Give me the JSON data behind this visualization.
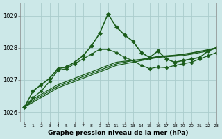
{
  "title": "Graphe pression niveau de la mer (hPa)",
  "bg_color": "#cce8e8",
  "grid_color": "#aacccc",
  "line_color": "#1a5c1a",
  "xlim": [
    -0.5,
    23
  ],
  "ylim": [
    1025.7,
    1029.4
  ],
  "yticks": [
    1026,
    1027,
    1028,
    1029
  ],
  "xticks": [
    0,
    1,
    2,
    3,
    4,
    5,
    6,
    7,
    8,
    9,
    10,
    11,
    12,
    13,
    14,
    15,
    16,
    17,
    18,
    19,
    20,
    21,
    22,
    23
  ],
  "series": [
    {
      "x": [
        0,
        1,
        2,
        3,
        4,
        5,
        6,
        7,
        8,
        9,
        10,
        11,
        12,
        13,
        14,
        15,
        16,
        17,
        18,
        19,
        20,
        21,
        22,
        23
      ],
      "y": [
        1026.15,
        1026.65,
        1026.85,
        1027.05,
        1027.35,
        1027.4,
        1027.55,
        1027.75,
        1028.05,
        1028.45,
        1029.05,
        1028.65,
        1028.4,
        1028.2,
        1027.85,
        1027.7,
        1027.9,
        1027.65,
        1027.55,
        1027.6,
        1027.65,
        1027.7,
        1027.9,
        1028.0
      ],
      "marker": "D",
      "markersize": 3.0,
      "linewidth": 1.2,
      "has_marker": true
    },
    {
      "x": [
        0,
        1,
        2,
        3,
        4,
        5,
        6,
        7,
        8,
        9,
        10,
        11,
        12,
        13,
        14,
        15,
        16,
        17,
        18,
        19,
        20,
        21,
        22,
        23
      ],
      "y": [
        1026.15,
        1026.3,
        1026.45,
        1026.6,
        1026.75,
        1026.85,
        1026.95,
        1027.05,
        1027.15,
        1027.25,
        1027.35,
        1027.45,
        1027.5,
        1027.55,
        1027.6,
        1027.65,
        1027.7,
        1027.72,
        1027.74,
        1027.76,
        1027.8,
        1027.85,
        1027.9,
        1028.0
      ],
      "marker": null,
      "markersize": 0,
      "linewidth": 0.9,
      "has_marker": false
    },
    {
      "x": [
        0,
        1,
        2,
        3,
        4,
        5,
        6,
        7,
        8,
        9,
        10,
        11,
        12,
        13,
        14,
        15,
        16,
        17,
        18,
        19,
        20,
        21,
        22,
        23
      ],
      "y": [
        1026.15,
        1026.35,
        1026.5,
        1026.65,
        1026.8,
        1026.9,
        1027.0,
        1027.1,
        1027.2,
        1027.3,
        1027.4,
        1027.5,
        1027.55,
        1027.6,
        1027.63,
        1027.67,
        1027.72,
        1027.74,
        1027.76,
        1027.79,
        1027.83,
        1027.88,
        1027.93,
        1028.0
      ],
      "marker": null,
      "markersize": 0,
      "linewidth": 0.9,
      "has_marker": false
    },
    {
      "x": [
        0,
        1,
        2,
        3,
        4,
        5,
        6,
        7,
        8,
        9,
        10,
        11,
        12,
        13,
        14,
        15,
        16,
        17,
        18,
        19,
        20,
        21,
        22,
        23
      ],
      "y": [
        1026.15,
        1026.4,
        1026.55,
        1026.7,
        1026.85,
        1026.95,
        1027.05,
        1027.15,
        1027.25,
        1027.35,
        1027.45,
        1027.55,
        1027.58,
        1027.61,
        1027.64,
        1027.68,
        1027.73,
        1027.75,
        1027.77,
        1027.8,
        1027.84,
        1027.89,
        1027.94,
        1028.0
      ],
      "marker": null,
      "markersize": 0,
      "linewidth": 0.9,
      "has_marker": false
    },
    {
      "x": [
        0,
        1,
        2,
        3,
        4,
        5,
        6,
        7,
        8,
        9,
        10,
        11,
        12,
        13,
        14,
        15,
        16,
        17,
        18,
        19,
        20,
        21,
        22,
        23
      ],
      "y": [
        1026.15,
        1026.45,
        1026.65,
        1026.95,
        1027.3,
        1027.35,
        1027.5,
        1027.65,
        1027.8,
        1027.95,
        1027.95,
        1027.85,
        1027.7,
        1027.6,
        1027.45,
        1027.35,
        1027.4,
        1027.38,
        1027.45,
        1027.5,
        1027.55,
        1027.65,
        1027.75,
        1027.85
      ],
      "marker": "D",
      "markersize": 2.5,
      "linewidth": 0.9,
      "has_marker": true
    }
  ]
}
